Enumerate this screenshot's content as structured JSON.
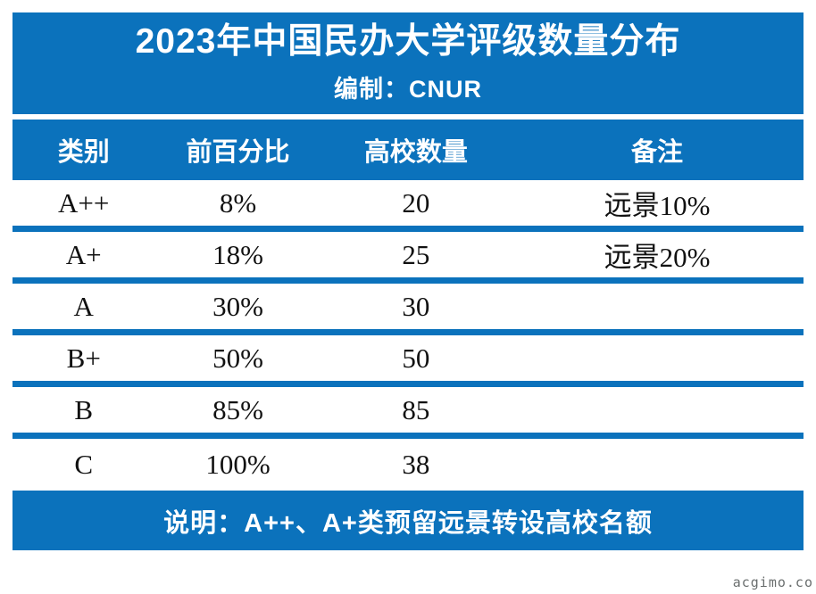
{
  "page": {
    "accent_color": "#0b72bc",
    "background_color": "#ffffff",
    "text_color_on_accent": "#ffffff",
    "body_text_color": "#111111"
  },
  "header": {
    "title": "2023年中国民办大学评级数量分布",
    "subtitle": "编制：CNUR"
  },
  "table": {
    "columns": [
      "类别",
      "前百分比",
      "高校数量",
      "备注"
    ],
    "rows": [
      [
        "A++",
        "8%",
        "20",
        "远景10%"
      ],
      [
        "A+",
        "18%",
        "25",
        "远景20%"
      ],
      [
        "A",
        "30%",
        "30",
        ""
      ],
      [
        "B+",
        "50%",
        "50",
        ""
      ],
      [
        "B",
        "85%",
        "85",
        ""
      ],
      [
        "C",
        "100%",
        "38",
        ""
      ]
    ]
  },
  "footer": {
    "note": "说明：A++、A+类预留远景转设高校名额"
  },
  "watermark": "acgimo.co",
  "chart_data": {
    "type": "table",
    "title": "2023年中国民办大学评级数量分布",
    "subtitle": "编制：CNUR",
    "columns": [
      "类别",
      "前百分比",
      "高校数量",
      "备注"
    ],
    "rows": [
      {
        "category": "A++",
        "top_percentage": "8%",
        "university_count": 20,
        "note": "远景10%"
      },
      {
        "category": "A+",
        "top_percentage": "18%",
        "university_count": 25,
        "note": "远景20%"
      },
      {
        "category": "A",
        "top_percentage": "30%",
        "university_count": 30,
        "note": ""
      },
      {
        "category": "B+",
        "top_percentage": "50%",
        "university_count": 50,
        "note": ""
      },
      {
        "category": "B",
        "top_percentage": "85%",
        "university_count": 85,
        "note": ""
      },
      {
        "category": "C",
        "top_percentage": "100%",
        "university_count": 38,
        "note": ""
      }
    ],
    "footnote": "说明：A++、A+类预留远景转设高校名额",
    "layout_hints": {
      "header_background": "#0b72bc",
      "row_separator_color": "#0b72bc",
      "body_font": "serif"
    }
  }
}
